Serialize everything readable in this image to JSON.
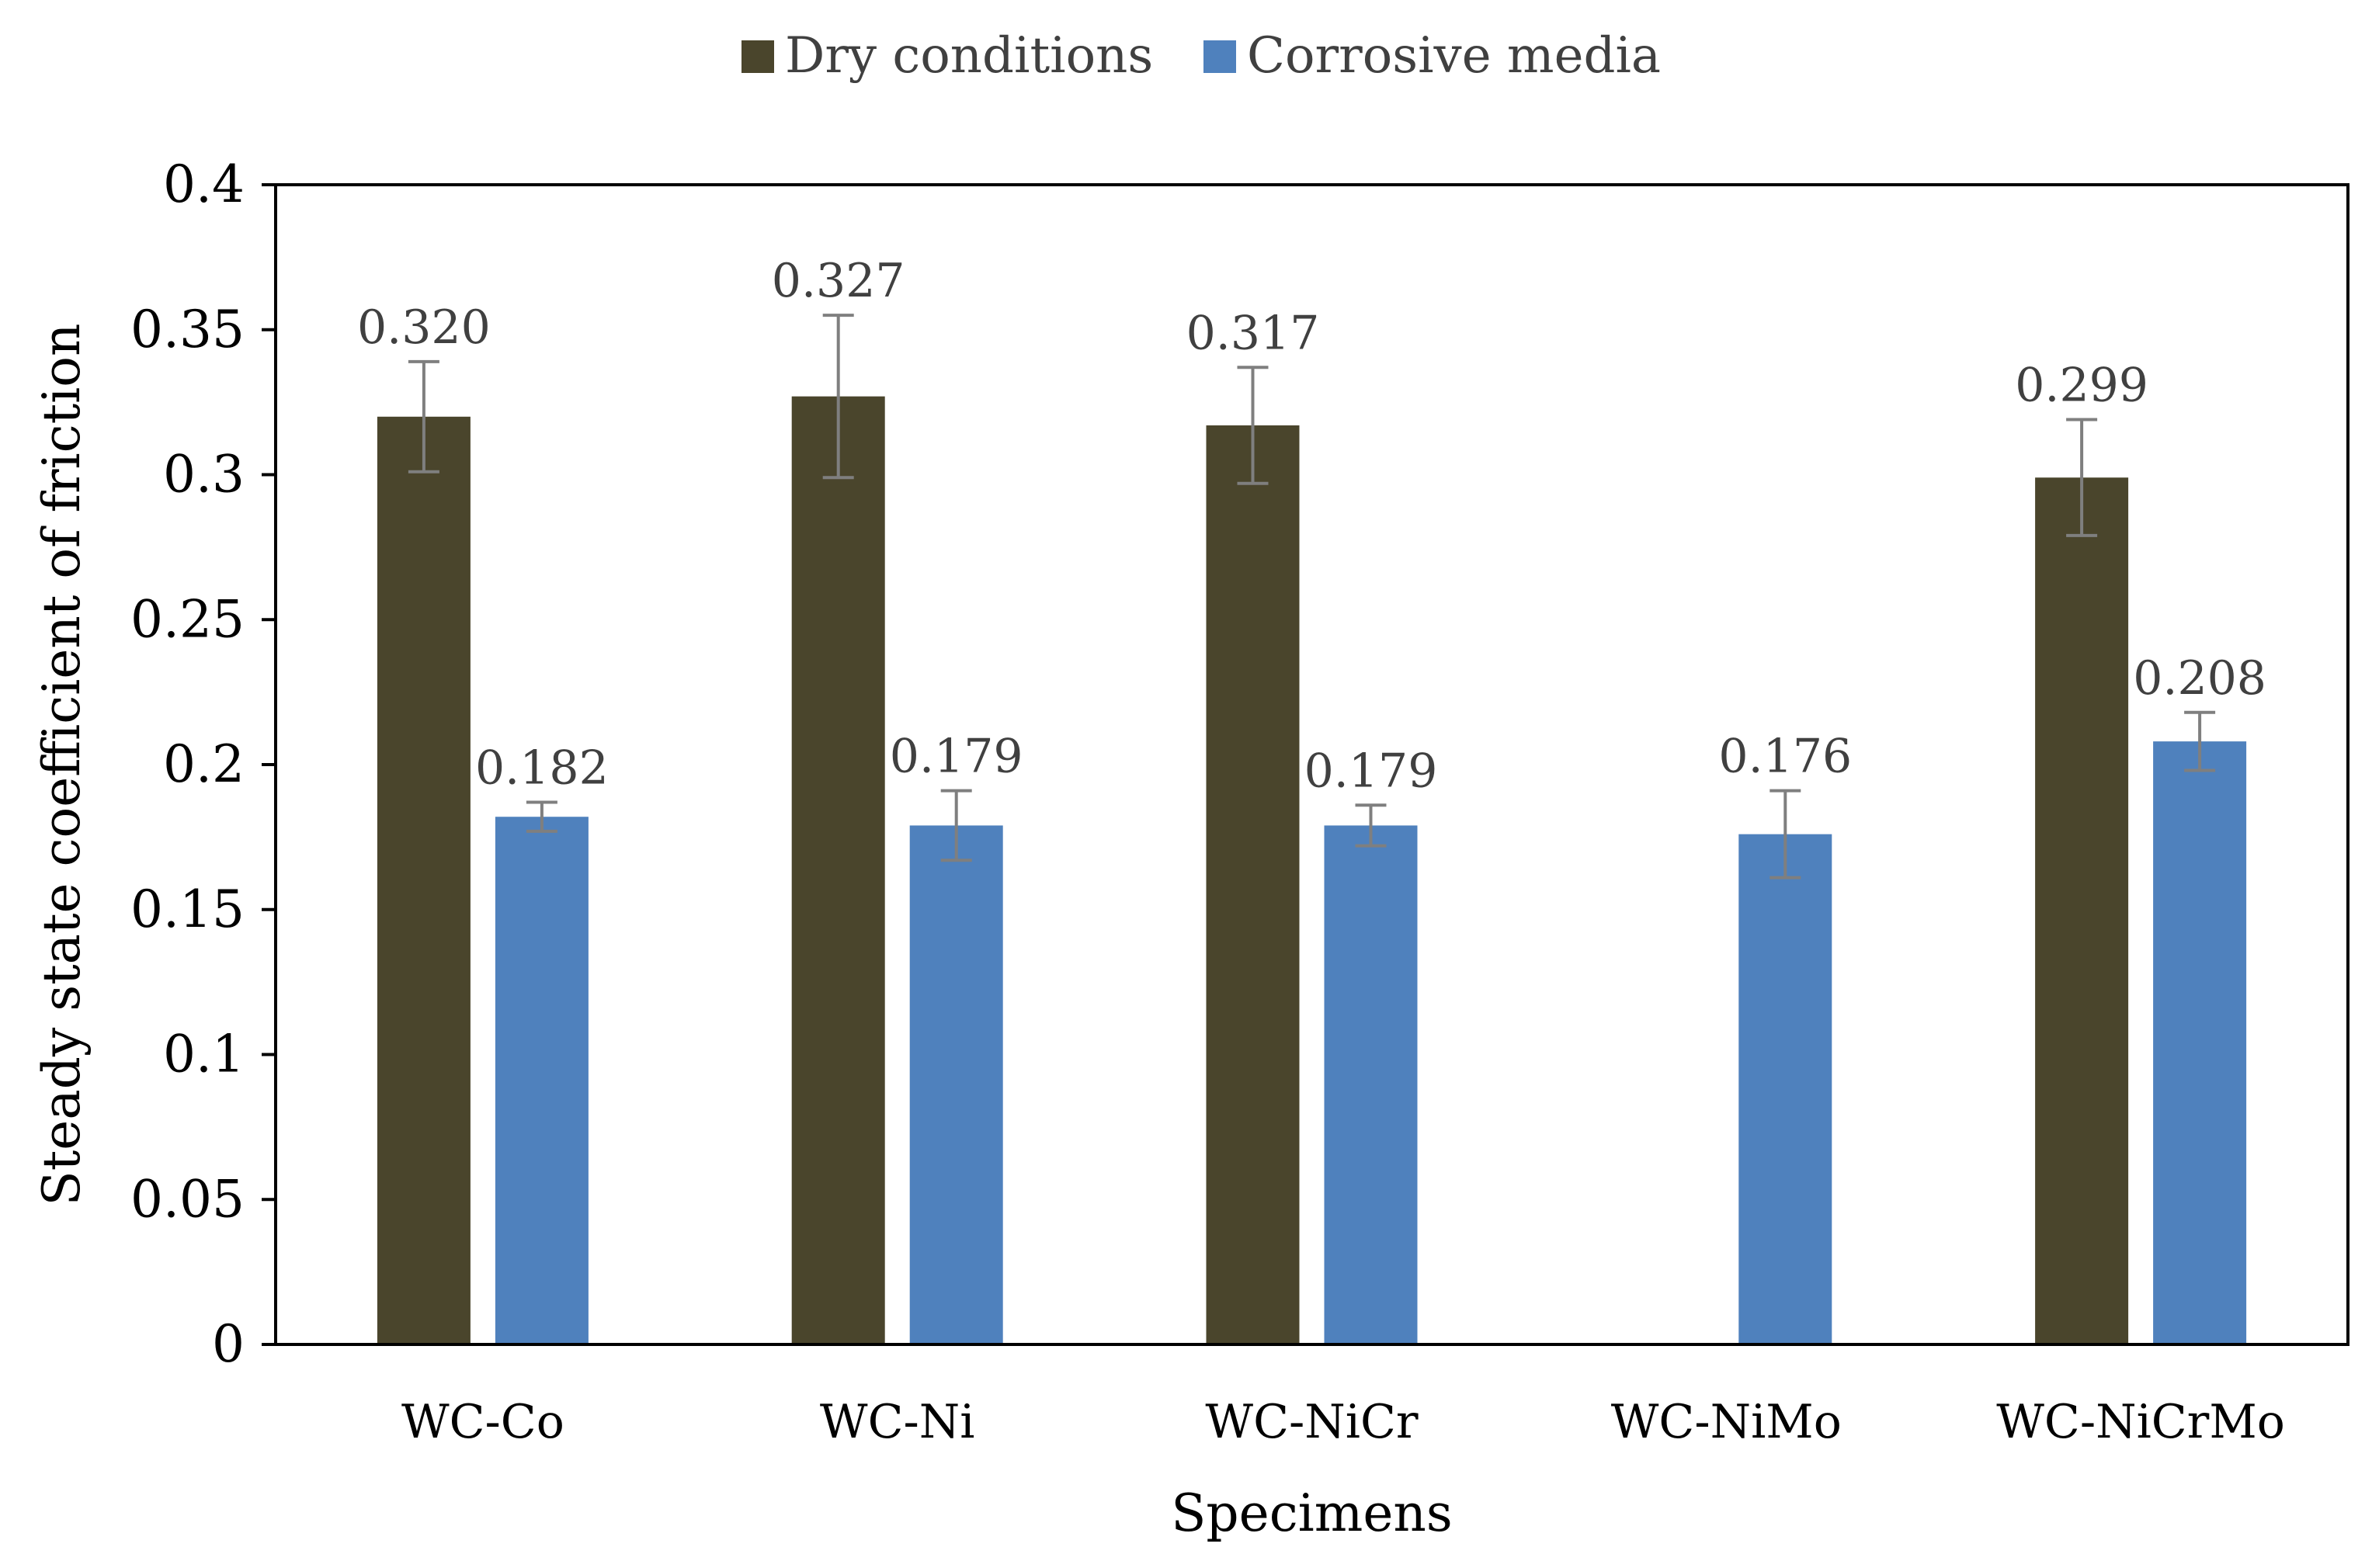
{
  "chart_data": {
    "type": "bar",
    "title": "",
    "xlabel": "Specimens",
    "ylabel": "Steady state coefficient of friction",
    "categories": [
      "WC-Co",
      "WC-Ni",
      "WC-NiCr",
      "WC-NiMo",
      "WC-NiCrMo"
    ],
    "ylim": [
      0,
      0.4
    ],
    "yticks": [
      "0",
      "0.05",
      "0.1",
      "0.15",
      "0.2",
      "0.25",
      "0.3",
      "0.35",
      "0.4"
    ],
    "grid": false,
    "legend_position": "top-center",
    "series": [
      {
        "name": "Dry conditions",
        "color": "#4a452c",
        "values": [
          0.32,
          0.327,
          0.317,
          null,
          0.299
        ],
        "errors": [
          0.019,
          0.028,
          0.02,
          null,
          0.02
        ],
        "labels": [
          "0.320",
          "0.327",
          "0.317",
          "",
          "0.299"
        ]
      },
      {
        "name": "Corrosive media",
        "color": "#4f81bd",
        "values": [
          0.182,
          0.179,
          0.179,
          0.176,
          0.208
        ],
        "errors": [
          0.005,
          0.012,
          0.007,
          0.015,
          0.01
        ],
        "labels": [
          "0.182",
          "0.179",
          "0.179",
          "0.176",
          "0.208"
        ]
      }
    ]
  }
}
